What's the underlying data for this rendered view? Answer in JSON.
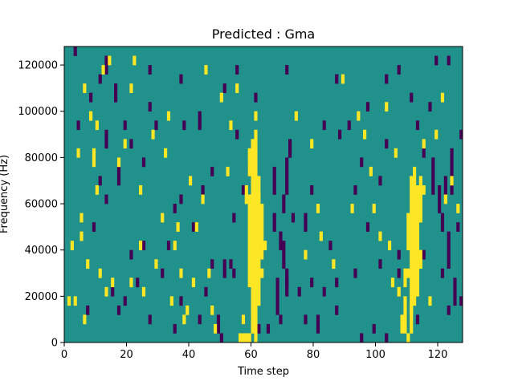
{
  "chart_data": {
    "type": "heatmap",
    "title": "Predicted : Gma",
    "xlabel": "Time step",
    "ylabel": "Frequency (Hz)",
    "xlim": [
      0,
      128
    ],
    "ylim": [
      0,
      128000
    ],
    "x_ticks": [
      0,
      20,
      40,
      60,
      80,
      100,
      120
    ],
    "y_ticks": [
      0,
      20000,
      40000,
      60000,
      80000,
      100000,
      120000
    ],
    "x_tick_labels": [
      "0",
      "20",
      "40",
      "60",
      "80",
      "100",
      "120"
    ],
    "y_tick_labels": [
      "0",
      "20000",
      "40000",
      "60000",
      "80000",
      "100000",
      "120000"
    ],
    "grid": false,
    "colormap": "viridis",
    "background_value": 0,
    "value_colors": {
      "-1": "#440154",
      "0": "#21918c",
      "1": "#fde725"
    },
    "low_cells": [
      [
        3,
        124000,
        4000
      ],
      [
        13,
        116000,
        8000
      ],
      [
        11,
        112000,
        4000
      ],
      [
        27,
        116000,
        4000
      ],
      [
        55,
        116000,
        4000
      ],
      [
        71,
        116000,
        4000
      ],
      [
        87,
        112000,
        4000
      ],
      [
        103,
        112000,
        4000
      ],
      [
        119,
        120000,
        4000
      ],
      [
        123,
        120000,
        4000
      ],
      [
        107,
        116000,
        4000
      ],
      [
        8,
        104000,
        4000
      ],
      [
        16,
        104000,
        8000
      ],
      [
        37,
        112000,
        4000
      ],
      [
        51,
        108000,
        4000
      ],
      [
        61,
        104000,
        4000
      ],
      [
        97,
        100000,
        4000
      ],
      [
        111,
        104000,
        4000
      ],
      [
        117,
        100000,
        4000
      ],
      [
        4,
        92000,
        4000
      ],
      [
        19,
        92000,
        4000
      ],
      [
        29,
        92000,
        4000
      ],
      [
        43,
        92000,
        8000
      ],
      [
        55,
        88000,
        4000
      ],
      [
        91,
        92000,
        4000
      ],
      [
        103,
        84000,
        4000
      ],
      [
        113,
        92000,
        4000
      ],
      [
        127,
        88000,
        4000
      ],
      [
        13,
        84000,
        8000
      ],
      [
        21,
        84000,
        4000
      ],
      [
        59,
        72000,
        4000
      ],
      [
        72,
        80000,
        8000
      ],
      [
        71,
        64000,
        16000
      ],
      [
        70,
        56000,
        8000
      ],
      [
        67,
        64000,
        12000
      ],
      [
        88,
        88000,
        4000
      ],
      [
        115,
        80000,
        4000
      ],
      [
        118,
        64000,
        16000
      ],
      [
        120,
        56000,
        12000
      ],
      [
        122,
        64000,
        8000
      ],
      [
        124,
        64000,
        20000
      ],
      [
        11,
        68000,
        4000
      ],
      [
        17,
        68000,
        8000
      ],
      [
        25,
        76000,
        4000
      ],
      [
        37,
        60000,
        4000
      ],
      [
        47,
        72000,
        4000
      ],
      [
        57,
        64000,
        4000
      ],
      [
        79,
        64000,
        4000
      ],
      [
        95,
        76000,
        4000
      ],
      [
        101,
        68000,
        4000
      ],
      [
        9,
        48000,
        4000
      ],
      [
        35,
        56000,
        4000
      ],
      [
        41,
        48000,
        4000
      ],
      [
        67,
        48000,
        8000
      ],
      [
        69,
        40000,
        8000
      ],
      [
        73,
        52000,
        4000
      ],
      [
        77,
        48000,
        8000
      ],
      [
        85,
        40000,
        4000
      ],
      [
        113,
        48000,
        4000
      ],
      [
        121,
        48000,
        8000
      ],
      [
        123,
        32000,
        16000
      ],
      [
        126,
        48000,
        4000
      ],
      [
        21,
        36000,
        4000
      ],
      [
        33,
        40000,
        4000
      ],
      [
        47,
        32000,
        4000
      ],
      [
        51,
        28000,
        8000
      ],
      [
        53,
        32000,
        4000
      ],
      [
        63,
        36000,
        4000
      ],
      [
        71,
        24000,
        8000
      ],
      [
        70,
        32000,
        12000
      ],
      [
        93,
        28000,
        4000
      ],
      [
        101,
        32000,
        4000
      ],
      [
        107,
        28000,
        4000
      ],
      [
        121,
        28000,
        4000
      ],
      [
        125,
        16000,
        12000
      ],
      [
        15,
        20000,
        4000
      ],
      [
        19,
        16000,
        4000
      ],
      [
        23,
        24000,
        4000
      ],
      [
        37,
        16000,
        4000
      ],
      [
        45,
        20000,
        4000
      ],
      [
        61,
        16000,
        4000
      ],
      [
        68,
        12000,
        16000
      ],
      [
        71,
        20000,
        8000
      ],
      [
        75,
        20000,
        4000
      ],
      [
        79,
        24000,
        4000
      ],
      [
        83,
        20000,
        4000
      ],
      [
        87,
        24000,
        4000
      ],
      [
        123,
        12000,
        4000
      ],
      [
        127,
        16000,
        4000
      ],
      [
        7,
        12000,
        4000
      ],
      [
        17,
        12000,
        4000
      ],
      [
        27,
        8000,
        4000
      ],
      [
        35,
        4000,
        4000
      ],
      [
        43,
        8000,
        4000
      ],
      [
        49,
        4000,
        8000
      ],
      [
        57,
        8000,
        4000
      ],
      [
        65,
        4000,
        4000
      ],
      [
        69,
        8000,
        4000
      ],
      [
        77,
        8000,
        4000
      ],
      [
        81,
        4000,
        8000
      ],
      [
        99,
        4000,
        4000
      ],
      [
        103,
        0,
        4000
      ],
      [
        108,
        4000,
        4000
      ],
      [
        113,
        8000,
        4000
      ],
      [
        50,
        0,
        4000
      ],
      [
        95,
        0,
        4000
      ],
      [
        31,
        28000,
        4000
      ],
      [
        54,
        28000,
        4000
      ],
      [
        107,
        36000,
        4000
      ],
      [
        44,
        64000,
        4000
      ],
      [
        115,
        36000,
        4000
      ],
      [
        62,
        4000,
        4000
      ],
      [
        87,
        12000,
        4000
      ],
      [
        83,
        92000,
        4000
      ],
      [
        93,
        64000,
        4000
      ],
      [
        97,
        48000,
        4000
      ],
      [
        54,
        52000,
        4000
      ],
      [
        25,
        40000,
        4000
      ],
      [
        13,
        60000,
        4000
      ],
      [
        27,
        100000,
        4000
      ],
      [
        38,
        92000,
        4000
      ]
    ],
    "high_cells": [
      [
        60,
        4000,
        84000
      ],
      [
        61,
        0,
        92000
      ],
      [
        62,
        16000,
        56000
      ],
      [
        59,
        24000,
        40000
      ],
      [
        63,
        36000,
        24000
      ],
      [
        58,
        60000,
        8000
      ],
      [
        57,
        8000,
        4000
      ],
      [
        56,
        0,
        4000
      ],
      [
        57,
        0,
        4000
      ],
      [
        58,
        0,
        4000
      ],
      [
        59,
        0,
        4000
      ],
      [
        111,
        12000,
        60000
      ],
      [
        112,
        16000,
        60000
      ],
      [
        113,
        20000,
        48000
      ],
      [
        110,
        40000,
        16000
      ],
      [
        114,
        52000,
        20000
      ],
      [
        109,
        4000,
        16000
      ],
      [
        110,
        0,
        4000
      ],
      [
        111,
        4000,
        12000
      ],
      [
        108,
        4000,
        8000
      ],
      [
        109,
        28000,
        4000
      ],
      [
        110,
        28000,
        4000
      ],
      [
        112,
        24000,
        8000
      ],
      [
        105,
        24000,
        4000
      ],
      [
        107,
        20000,
        4000
      ],
      [
        115,
        64000,
        4000
      ],
      [
        60,
        48000,
        20000
      ],
      [
        59,
        72000,
        12000
      ],
      [
        114,
        32000,
        8000
      ],
      [
        3,
        16000,
        4000
      ],
      [
        1,
        16000,
        4000
      ],
      [
        5,
        52000,
        4000
      ],
      [
        5,
        44000,
        4000
      ],
      [
        6,
        8000,
        4000
      ],
      [
        7,
        32000,
        4000
      ],
      [
        9,
        76000,
        8000
      ],
      [
        8,
        96000,
        4000
      ],
      [
        6,
        108000,
        4000
      ],
      [
        10,
        64000,
        4000
      ],
      [
        10,
        92000,
        4000
      ],
      [
        12,
        116000,
        4000
      ],
      [
        11,
        28000,
        4000
      ],
      [
        13,
        20000,
        4000
      ],
      [
        15,
        24000,
        4000
      ],
      [
        17,
        76000,
        4000
      ],
      [
        19,
        84000,
        4000
      ],
      [
        22,
        120000,
        4000
      ],
      [
        21,
        108000,
        4000
      ],
      [
        24,
        64000,
        4000
      ],
      [
        24,
        40000,
        4000
      ],
      [
        25,
        20000,
        4000
      ],
      [
        28,
        88000,
        4000
      ],
      [
        31,
        52000,
        4000
      ],
      [
        32,
        80000,
        4000
      ],
      [
        34,
        16000,
        4000
      ],
      [
        35,
        40000,
        4000
      ],
      [
        36,
        48000,
        4000
      ],
      [
        37,
        28000,
        4000
      ],
      [
        38,
        8000,
        4000
      ],
      [
        39,
        12000,
        4000
      ],
      [
        40,
        68000,
        4000
      ],
      [
        41,
        24000,
        4000
      ],
      [
        42,
        48000,
        4000
      ],
      [
        44,
        60000,
        4000
      ],
      [
        46,
        28000,
        4000
      ],
      [
        47,
        12000,
        4000
      ],
      [
        48,
        4000,
        4000
      ],
      [
        50,
        104000,
        4000
      ],
      [
        53,
        92000,
        4000
      ],
      [
        55,
        108000,
        4000
      ],
      [
        61,
        96000,
        4000
      ],
      [
        63,
        28000,
        4000
      ],
      [
        64,
        40000,
        4000
      ],
      [
        62,
        60000,
        4000
      ],
      [
        74,
        96000,
        4000
      ],
      [
        77,
        36000,
        4000
      ],
      [
        79,
        84000,
        4000
      ],
      [
        81,
        56000,
        4000
      ],
      [
        82,
        44000,
        4000
      ],
      [
        86,
        32000,
        4000
      ],
      [
        89,
        112000,
        4000
      ],
      [
        92,
        56000,
        4000
      ],
      [
        94,
        96000,
        4000
      ],
      [
        96,
        88000,
        4000
      ],
      [
        98,
        72000,
        4000
      ],
      [
        99,
        56000,
        4000
      ],
      [
        101,
        44000,
        4000
      ],
      [
        103,
        100000,
        4000
      ],
      [
        104,
        40000,
        4000
      ],
      [
        106,
        80000,
        4000
      ],
      [
        109,
        24000,
        4000
      ],
      [
        115,
        84000,
        4000
      ],
      [
        117,
        16000,
        4000
      ],
      [
        119,
        88000,
        4000
      ],
      [
        121,
        104000,
        4000
      ],
      [
        122,
        60000,
        4000
      ],
      [
        124,
        68000,
        4000
      ],
      [
        126,
        56000,
        4000
      ],
      [
        2,
        40000,
        4000
      ],
      [
        4,
        80000,
        4000
      ],
      [
        21,
        24000,
        4000
      ],
      [
        14,
        120000,
        4000
      ],
      [
        45,
        116000,
        4000
      ],
      [
        29,
        32000,
        4000
      ],
      [
        33,
        96000,
        4000
      ],
      [
        52,
        72000,
        4000
      ]
    ]
  }
}
